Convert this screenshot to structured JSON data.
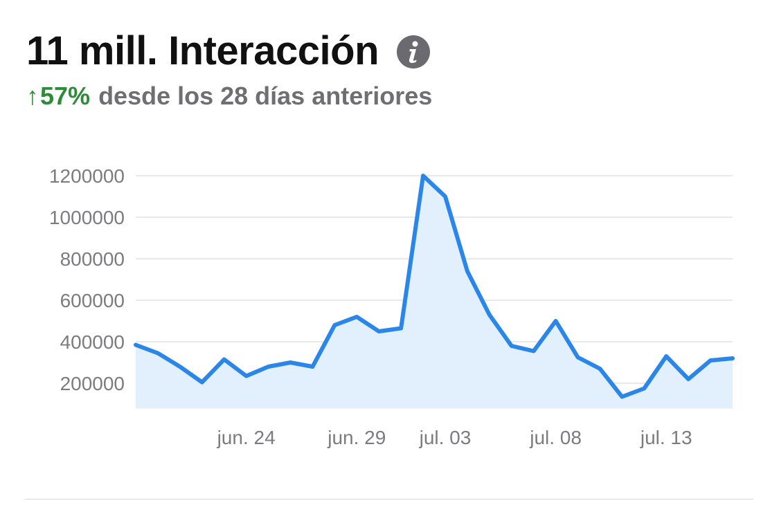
{
  "header": {
    "title": "11 mill. Interacción",
    "info_icon": "info-icon",
    "change_arrow": "↑",
    "change_percent": "57%",
    "change_text": "desde los 28 días anteriores",
    "change_color": "#2e8b37"
  },
  "chart_data": {
    "type": "area",
    "title": "",
    "xlabel": "",
    "ylabel": "",
    "ylim": [
      80000,
      1200000
    ],
    "yticks": [
      200000,
      400000,
      600000,
      800000,
      1000000,
      1200000
    ],
    "ytick_labels": [
      "200000",
      "400000",
      "600000",
      "800000",
      "1000000",
      "1200000"
    ],
    "xtick_labels": [
      "jun. 24",
      "jun. 29",
      "jul. 03",
      "jul. 08",
      "jul. 13"
    ],
    "xtick_indices": [
      5,
      10,
      14,
      19,
      24
    ],
    "grid": true,
    "line_color": "#2a86e8",
    "fill_color": "#e2effc",
    "series": [
      {
        "values": [
          385000,
          345000,
          280000,
          205000,
          315000,
          235000,
          280000,
          300000,
          280000,
          480000,
          520000,
          450000,
          465000,
          1200000,
          1100000,
          740000,
          530000,
          380000,
          355000,
          500000,
          325000,
          270000,
          135000,
          175000,
          330000,
          220000,
          310000,
          320000
        ]
      }
    ]
  }
}
